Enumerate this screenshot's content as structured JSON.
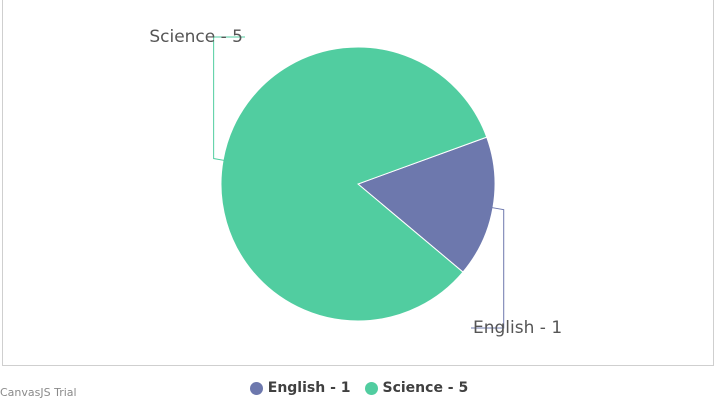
{
  "chart_data": {
    "type": "pie",
    "title": "",
    "slices": [
      {
        "label": "English",
        "value": 1,
        "display": "English - 1",
        "color": "#6d78ad"
      },
      {
        "label": "Science",
        "value": 5,
        "display": "Science - 5",
        "color": "#51cda0"
      }
    ],
    "legend_placement": "bottom-center"
  },
  "watermark": "CanvasJS Trial"
}
